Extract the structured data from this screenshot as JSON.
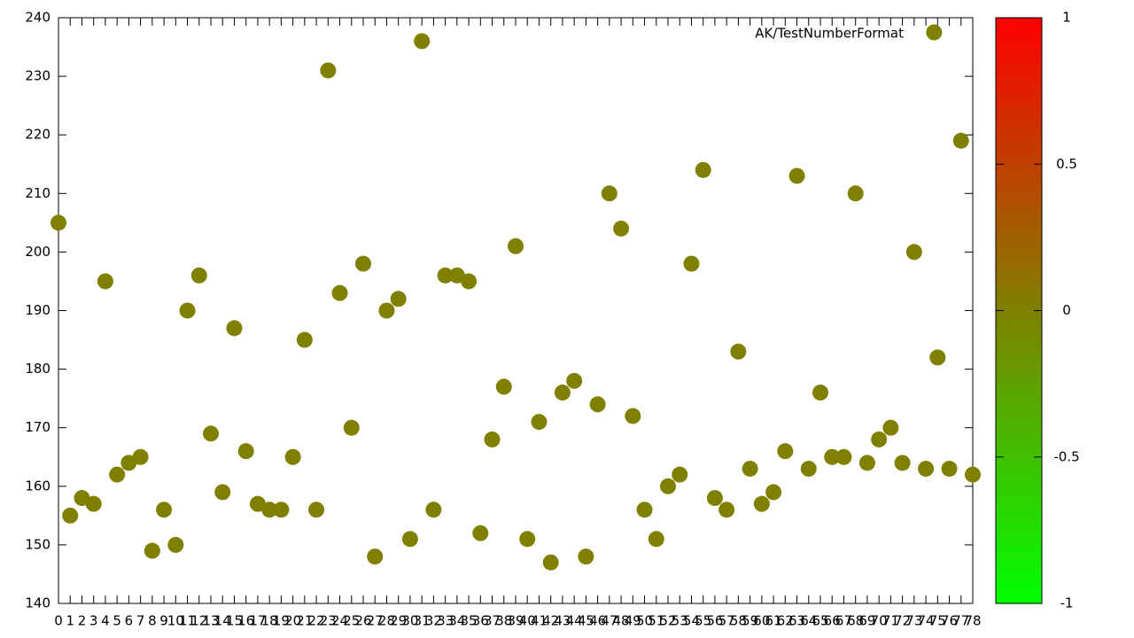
{
  "chart_data": {
    "type": "scatter",
    "series": [
      {
        "name": "AK/TestNumberFormat",
        "color": "#808000",
        "x": [
          0,
          1,
          2,
          3,
          4,
          5,
          6,
          7,
          8,
          9,
          10,
          11,
          12,
          13,
          14,
          15,
          16,
          17,
          18,
          19,
          20,
          21,
          22,
          23,
          24,
          25,
          26,
          27,
          28,
          29,
          30,
          31,
          32,
          33,
          34,
          35,
          36,
          37,
          38,
          39,
          40,
          41,
          42,
          43,
          44,
          45,
          46,
          47,
          48,
          49,
          50,
          51,
          52,
          53,
          54,
          55,
          56,
          57,
          58,
          59,
          60,
          61,
          62,
          63,
          64,
          65,
          66,
          67,
          68,
          69,
          70,
          71,
          72,
          73,
          74,
          74.7,
          75,
          76,
          77,
          78
        ],
        "values": [
          205,
          155,
          158,
          157,
          195,
          162,
          164,
          165,
          149,
          156,
          150,
          190,
          196,
          169,
          159,
          187,
          166,
          157,
          156,
          156,
          165,
          185,
          156,
          231,
          193,
          170,
          198,
          148,
          190,
          192,
          151,
          236,
          156,
          196,
          196,
          195,
          152,
          168,
          177,
          201,
          151,
          171,
          147,
          176,
          178,
          148,
          174,
          210,
          204,
          172,
          156,
          151,
          160,
          162,
          198,
          214,
          158,
          156,
          183,
          163,
          157,
          159,
          166,
          213,
          163,
          176,
          165,
          165,
          210,
          164,
          168,
          170,
          164,
          200,
          163,
          237.5,
          182,
          163,
          219,
          162
        ]
      }
    ],
    "xlim": [
      0,
      78
    ],
    "xticks": [
      0,
      1,
      2,
      3,
      4,
      5,
      6,
      7,
      8,
      9,
      10,
      11,
      12,
      13,
      14,
      15,
      16,
      17,
      18,
      19,
      20,
      21,
      22,
      23,
      24,
      25,
      26,
      27,
      28,
      29,
      30,
      31,
      32,
      33,
      34,
      35,
      36,
      37,
      38,
      39,
      40,
      41,
      42,
      43,
      44,
      45,
      46,
      47,
      48,
      49,
      50,
      51,
      52,
      53,
      54,
      55,
      56,
      57,
      58,
      59,
      60,
      61,
      62,
      63,
      64,
      65,
      66,
      67,
      68,
      69,
      70,
      71,
      72,
      73,
      74,
      75,
      76,
      77,
      78
    ],
    "ylim": [
      140,
      240
    ],
    "yticks": [
      140,
      150,
      160,
      170,
      180,
      190,
      200,
      210,
      220,
      230,
      240
    ],
    "colorbar": {
      "lim": [
        -1,
        1
      ],
      "ticks": [
        -1,
        -0.5,
        0,
        0.5,
        1
      ],
      "colors": [
        "#00ff00",
        "#808000",
        "#ff0000"
      ]
    }
  }
}
